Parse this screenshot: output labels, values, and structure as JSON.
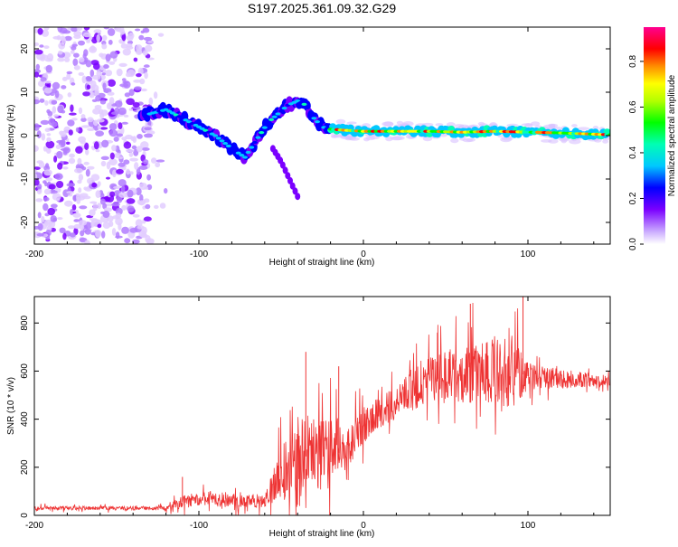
{
  "title": "S197.2025.361.09.32.G29",
  "chart_data": [
    {
      "type": "heatmap",
      "title": "S197.2025.361.09.32.G29",
      "xlabel": "Height of straight line (km)",
      "ylabel": "Frequency (Hz)",
      "xlim": [
        -200,
        150
      ],
      "ylim": [
        -25,
        25
      ],
      "x_ticks": [
        -200,
        -100,
        0,
        100
      ],
      "x_tick_labels": [
        "-200",
        "-100",
        "0",
        "100"
      ],
      "y_ticks": [
        20,
        10,
        0,
        -10,
        -20
      ],
      "y_tick_labels": [
        "20",
        "10",
        "0",
        "-10",
        "-20"
      ],
      "colorbar": {
        "label": "Normalized spectral amplitude",
        "range": [
          0,
          0.95
        ],
        "ticks": [
          0,
          0.2,
          0.4,
          0.6,
          0.8
        ],
        "tick_labels": [
          "0.0",
          "0.2",
          "0.4",
          "0.6",
          "0.8"
        ]
      },
      "ridge": {
        "x": [
          -130,
          -120,
          -110,
          -100,
          -90,
          -80,
          -72,
          -65,
          -58,
          -52,
          -46,
          -40,
          -35,
          -30,
          -25,
          -20,
          -10,
          0,
          20,
          40,
          60,
          80,
          100,
          120,
          150
        ],
        "y": [
          5,
          6,
          4,
          2,
          0,
          -3,
          -5,
          -1,
          3,
          5,
          7,
          8,
          7,
          4,
          2,
          1.5,
          1.2,
          1,
          1,
          1,
          0.8,
          1,
          0.8,
          0.6,
          0.2
        ]
      },
      "branch": {
        "x": [
          -55,
          -50,
          -45,
          -40
        ],
        "y": [
          -3,
          -6,
          -10,
          -14
        ]
      },
      "noise_region": {
        "x": [
          -200,
          -130
        ],
        "y": [
          -25,
          25
        ]
      }
    },
    {
      "type": "line",
      "xlabel": "Height of straight line (km)",
      "ylabel": "SNR (10 * v/v)",
      "xlim": [
        -200,
        150
      ],
      "ylim": [
        0,
        910
      ],
      "x_ticks": [
        -200,
        -100,
        0,
        100
      ],
      "x_tick_labels": [
        "-200",
        "-100",
        "0",
        "100"
      ],
      "y_ticks": [
        0,
        200,
        400,
        600,
        800
      ],
      "y_tick_labels": [
        "0",
        "200",
        "400",
        "600",
        "800"
      ],
      "series": [
        {
          "name": "SNR",
          "color": "#ee3333",
          "trend": {
            "x": [
              -200,
              -120,
              -110,
              -100,
              -80,
              -60,
              -50,
              -40,
              -30,
              -20,
              -10,
              0,
              10,
              20,
              30,
              40,
              60,
              80,
              95,
              100,
              110,
              130,
              150
            ],
            "y": [
              30,
              30,
              55,
              70,
              60,
              60,
              160,
              230,
              260,
              240,
              280,
              380,
              430,
              470,
              520,
              560,
              590,
              600,
              590,
              580,
              570,
              565,
              560
            ]
          },
          "noise": {
            "x": [
              -200,
              -120,
              -110,
              -60,
              -50,
              -20,
              -10,
              20,
              30,
              90,
              100,
              150
            ],
            "amp": [
              12,
              12,
              40,
              40,
              180,
              220,
              120,
              100,
              120,
              230,
              80,
              30
            ]
          },
          "spikes": {
            "x": [
              -110,
              -35,
              -15,
              45,
              65,
              97
            ],
            "y": [
              160,
              680,
              620,
              760,
              880,
              910
            ]
          }
        }
      ]
    }
  ]
}
